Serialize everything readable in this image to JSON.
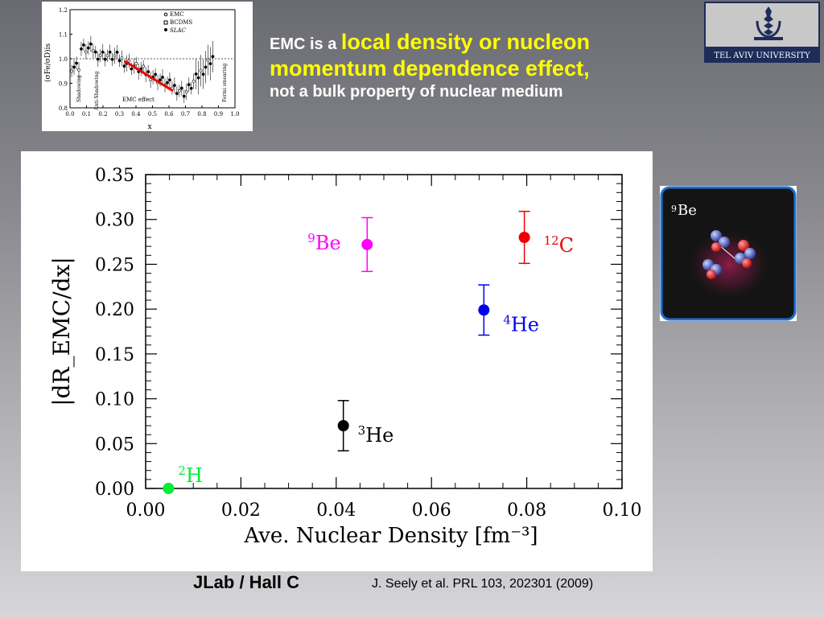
{
  "headline": {
    "prefix": "EMC is a ",
    "highlight_1": "local density or nucleon",
    "highlight_2": "momentum dependence effect,",
    "line3": "not a bulk property of nuclear medium",
    "highlight_color": "#ffff00"
  },
  "logo": {
    "text": "TEL AVIV UNIVERSITY"
  },
  "inset": {
    "ylabel": "(σFe/σD)is",
    "xlabel": "x",
    "legend": [
      "EMC",
      "BCDMS",
      "SLAC"
    ],
    "region_labels": [
      "Shadowing",
      "Anti-Shadowing",
      "EMC effect",
      "Fermi smearing"
    ],
    "x_ticks": [
      "0.0",
      "0.1",
      "0.2",
      "0.3",
      "0.4",
      "0.5",
      "0.6",
      "0.7",
      "0.8",
      "0.9",
      "1.0"
    ],
    "y_ticks": [
      "0.8",
      "0.9",
      "1.0",
      "1.1",
      "1.2"
    ]
  },
  "be_panel": {
    "label_sup": "9",
    "label": "Be"
  },
  "chart_data": {
    "type": "scatter",
    "xlabel": "Ave. Nuclear Density [fm⁻³]",
    "ylabel": "|dR_EMC/dx|",
    "xlim": [
      0.0,
      0.1
    ],
    "ylim": [
      0.0,
      0.35
    ],
    "x_ticks": [
      "0.00",
      "0.02",
      "0.04",
      "0.06",
      "0.08",
      "0.10"
    ],
    "y_ticks": [
      "0.00",
      "0.05",
      "0.10",
      "0.15",
      "0.20",
      "0.25",
      "0.30",
      "0.35"
    ],
    "points": [
      {
        "sup": "2",
        "name": "H",
        "x": 0.0048,
        "y": 0.0,
        "err": 0.0,
        "color": "#00ee33"
      },
      {
        "sup": "3",
        "name": "He",
        "x": 0.0415,
        "y": 0.07,
        "err": 0.028,
        "color": "#000000"
      },
      {
        "sup": "9",
        "name": "Be",
        "x": 0.0465,
        "y": 0.272,
        "err": 0.03,
        "color": "#ff00ff"
      },
      {
        "sup": "4",
        "name": "He",
        "x": 0.071,
        "y": 0.199,
        "err": 0.028,
        "color": "#0000ee"
      },
      {
        "sup": "12",
        "name": "C",
        "x": 0.0795,
        "y": 0.28,
        "err": 0.029,
        "color": "#ee0000"
      }
    ]
  },
  "footer": {
    "lab": "JLab / Hall C",
    "reference": "J. Seely et al. PRL  103, 202301 (2009)"
  }
}
